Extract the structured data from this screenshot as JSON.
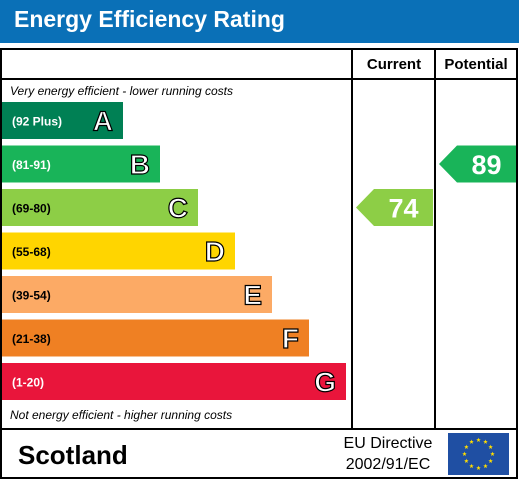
{
  "title": "Energy Efficiency Rating",
  "colors": {
    "title_bar": "#0a70b7",
    "border": "#000000",
    "band_a": "#008054",
    "band_b": "#19b459",
    "band_c": "#8dce46",
    "band_d": "#ffd500",
    "band_e": "#fcaa65",
    "band_f": "#ef8023",
    "band_g": "#e9153b",
    "eu_flag": "#1f4fa3",
    "eu_stars": "#ffdd00"
  },
  "chart_data": {
    "type": "table",
    "columns": {
      "current": "Current",
      "potential": "Potential"
    },
    "top_note": "Very energy efficient - lower running costs",
    "bottom_note": "Not energy efficient - higher running costs",
    "bands": [
      {
        "letter": "A",
        "range": "(92 Plus)",
        "min": 92,
        "max": null
      },
      {
        "letter": "B",
        "range": "(81-91)",
        "min": 81,
        "max": 91
      },
      {
        "letter": "C",
        "range": "(69-80)",
        "min": 69,
        "max": 80
      },
      {
        "letter": "D",
        "range": "(55-68)",
        "min": 55,
        "max": 68
      },
      {
        "letter": "E",
        "range": "(39-54)",
        "min": 39,
        "max": 54
      },
      {
        "letter": "F",
        "range": "(21-38)",
        "min": 21,
        "max": 38
      },
      {
        "letter": "G",
        "range": "(1-20)",
        "min": 1,
        "max": 20
      }
    ],
    "current": {
      "value": 74,
      "band": "C"
    },
    "potential": {
      "value": 89,
      "band": "B"
    }
  },
  "footer": {
    "region": "Scotland",
    "directive_line1": "EU Directive",
    "directive_line2": "2002/91/EC",
    "flag_icon": "eu-flag-icon"
  }
}
